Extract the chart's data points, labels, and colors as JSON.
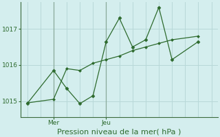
{
  "bg_color": "#d4eeee",
  "grid_color": "#b8d8d8",
  "line_color": "#2d6a2d",
  "marker_color": "#2d6a2d",
  "xlabel": "Pression niveau de la mer( hPa )",
  "xlabel_fontsize": 8,
  "yticks": [
    1015,
    1016,
    1017
  ],
  "ylim": [
    1014.55,
    1017.75
  ],
  "xtick_labels": [
    "Mer",
    "Jeu"
  ],
  "line1_x": [
    0,
    2,
    3,
    4,
    5,
    6,
    7,
    8,
    9,
    10,
    11,
    13
  ],
  "line1_y": [
    1014.93,
    1015.85,
    1015.35,
    1014.93,
    1015.15,
    1016.65,
    1017.3,
    1016.5,
    1016.7,
    1017.6,
    1016.15,
    1016.65
  ],
  "line2_x": [
    0,
    2,
    3,
    4,
    5,
    6,
    7,
    8,
    9,
    10,
    11,
    13
  ],
  "line2_y": [
    1014.95,
    1015.05,
    1015.9,
    1015.85,
    1016.05,
    1016.15,
    1016.25,
    1016.4,
    1016.5,
    1016.6,
    1016.7,
    1016.8
  ],
  "mer_x": 2,
  "jeu_x": 6,
  "xlim": [
    -0.5,
    14.5
  ],
  "num_grid_cols": 13
}
